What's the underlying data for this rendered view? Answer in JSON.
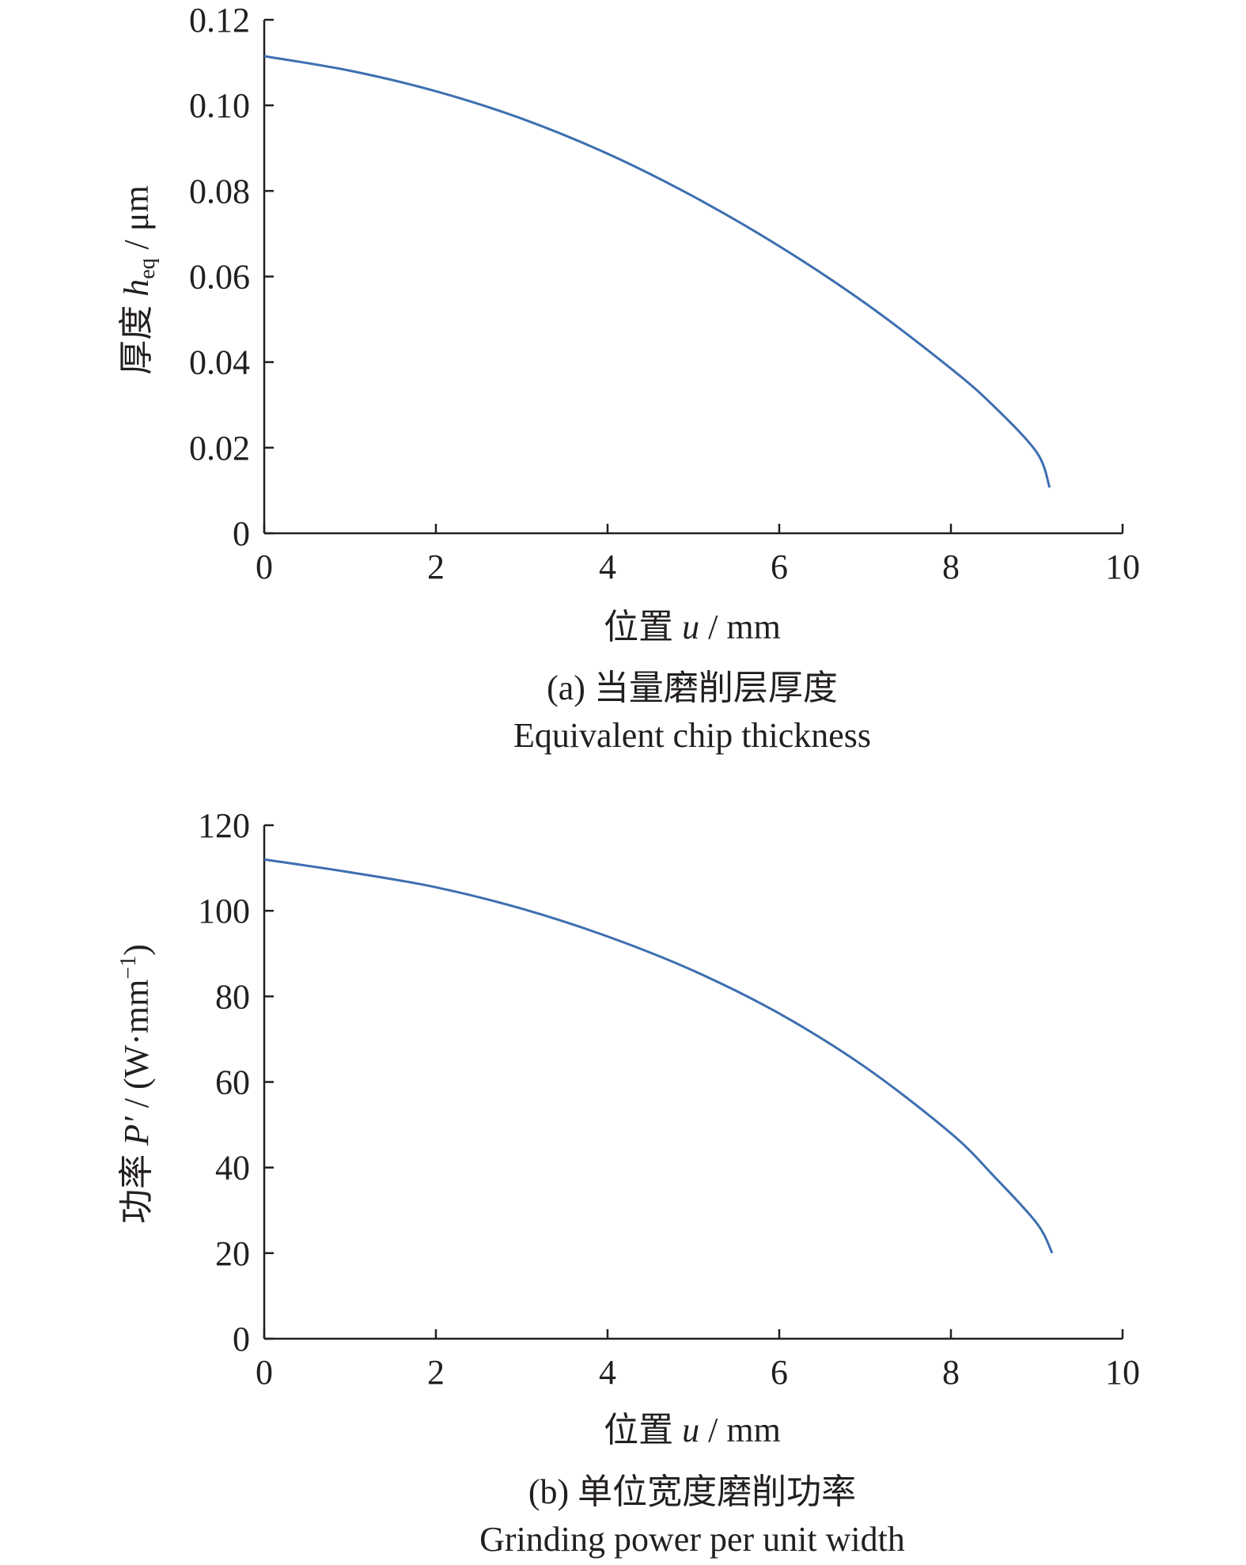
{
  "chart_data": [
    {
      "type": "line",
      "panel": "a",
      "caption_cn": "(a) 当量磨削层厚度",
      "caption_en": "Equivalent chip thickness",
      "xlabel": {
        "prefix": "位置 ",
        "var": "u",
        "unit": " / mm"
      },
      "ylabel": {
        "prefix": "厚度 ",
        "var": "h",
        "sub": "eq",
        "unit": " / μm"
      },
      "xlim": [
        0,
        10
      ],
      "ylim": [
        0,
        0.12
      ],
      "xticks": [
        0,
        2,
        4,
        6,
        8,
        10
      ],
      "yticks": [
        0,
        0.02,
        0.04,
        0.06,
        0.08,
        0.1,
        0.12
      ],
      "ytick_labels": [
        "0",
        "0.02",
        "0.04",
        "0.06",
        "0.08",
        "0.10",
        "0.12"
      ],
      "color": "#3d6fb0",
      "series": [
        {
          "x": [
            0,
            1,
            2,
            3,
            4,
            5,
            6,
            7,
            8,
            8.5,
            9,
            9.15
          ],
          "y": [
            0.1115,
            0.1081,
            0.1033,
            0.0969,
            0.0887,
            0.0787,
            0.0671,
            0.0538,
            0.0385,
            0.0297,
            0.0189,
            0.0107
          ]
        }
      ]
    },
    {
      "type": "line",
      "panel": "b",
      "caption_cn": "(b) 单位宽度磨削功率",
      "caption_en": "Grinding power per unit width",
      "xlabel": {
        "prefix": "位置 ",
        "var": "u",
        "unit": " / mm"
      },
      "ylabel": {
        "prefix": "功率 ",
        "var": "P′",
        "unit": " / (W·mm",
        "sup": "−1",
        "close": ")"
      },
      "xlim": [
        0,
        10
      ],
      "ylim": [
        0,
        120
      ],
      "xticks": [
        0,
        2,
        4,
        6,
        8,
        10
      ],
      "yticks": [
        0,
        20,
        40,
        60,
        80,
        100,
        120
      ],
      "ytick_labels": [
        "0",
        "20",
        "40",
        "60",
        "80",
        "100",
        "120"
      ],
      "color": "#3d6fb0",
      "series": [
        {
          "x": [
            0,
            1,
            2,
            3,
            4,
            5,
            6,
            7,
            8,
            8.5,
            9,
            9.18
          ],
          "y": [
            112,
            109,
            105.5,
            100.5,
            94,
            86,
            76,
            63.5,
            48,
            38,
            27,
            20
          ]
        }
      ]
    }
  ]
}
